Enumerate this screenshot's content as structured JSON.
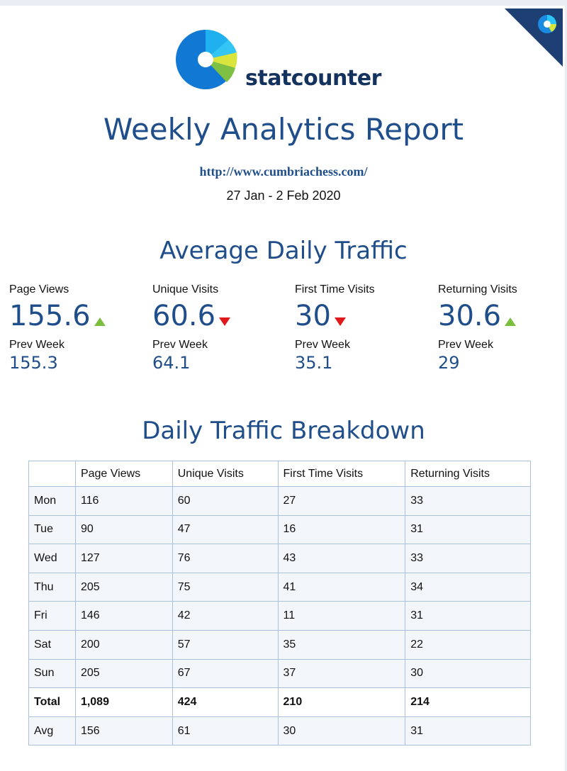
{
  "brand": {
    "name": "statcounter"
  },
  "report": {
    "title": "Weekly Analytics Report",
    "url": "http://www.cumbriachess.com/",
    "date_range": "27 Jan - 2 Feb 2020"
  },
  "average": {
    "title": "Average Daily Traffic",
    "metrics": [
      {
        "label": "Page Views",
        "value": "155.6",
        "trend": "up",
        "prev_label": "Prev Week",
        "prev_value": "155.3"
      },
      {
        "label": "Unique Visits",
        "value": "60.6",
        "trend": "down",
        "prev_label": "Prev Week",
        "prev_value": "64.1"
      },
      {
        "label": "First Time Visits",
        "value": "30",
        "trend": "down",
        "prev_label": "Prev Week",
        "prev_value": "35.1"
      },
      {
        "label": "Returning Visits",
        "value": "30.6",
        "trend": "up",
        "prev_label": "Prev Week",
        "prev_value": "29"
      }
    ]
  },
  "breakdown": {
    "title": "Daily Traffic Breakdown",
    "headers": [
      "",
      "Page Views",
      "Unique Visits",
      "First Time Visits",
      "Returning Visits"
    ],
    "rows": [
      [
        "Mon",
        "116",
        "60",
        "27",
        "33"
      ],
      [
        "Tue",
        "90",
        "47",
        "16",
        "31"
      ],
      [
        "Wed",
        "127",
        "76",
        "43",
        "33"
      ],
      [
        "Thu",
        "205",
        "75",
        "41",
        "34"
      ],
      [
        "Fri",
        "146",
        "42",
        "11",
        "31"
      ],
      [
        "Sat",
        "200",
        "57",
        "35",
        "22"
      ],
      [
        "Sun",
        "205",
        "67",
        "37",
        "30"
      ],
      [
        "Total",
        "1,089",
        "424",
        "210",
        "214"
      ],
      [
        "Avg",
        "156",
        "61",
        "30",
        "31"
      ]
    ]
  },
  "colors": {
    "accent_blue": "#1f4e8a",
    "brand_navy": "#14325e",
    "trend_up": "#7cbf3f",
    "trend_down": "#e0191c",
    "table_border": "#a9c1da"
  }
}
